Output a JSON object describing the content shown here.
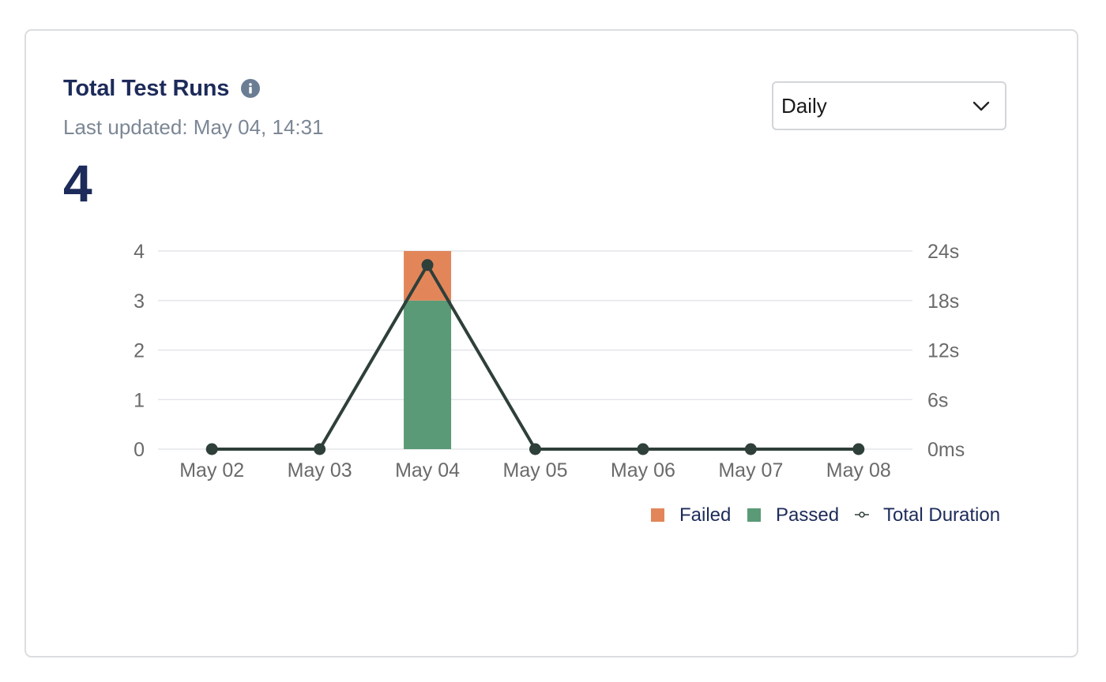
{
  "card": {
    "title": "Total Test Runs",
    "info_icon": "info-icon",
    "last_updated": "Last updated: May 04, 14:31",
    "total": "4"
  },
  "period_select": {
    "selected": "Daily",
    "icon": "chevron-down-icon"
  },
  "colors": {
    "failed": "#e2865a",
    "passed": "#5a9a76",
    "duration_line": "#2f3f3a",
    "grid": "#e4e6e9"
  },
  "chart_data": {
    "type": "bar",
    "categories": [
      "May 02",
      "May 03",
      "May 04",
      "May 05",
      "May 06",
      "May 07",
      "May 08"
    ],
    "stacked": true,
    "series": [
      {
        "name": "Passed",
        "type": "bar",
        "axis": "left",
        "values": [
          0,
          0,
          3,
          0,
          0,
          0,
          0
        ]
      },
      {
        "name": "Failed",
        "type": "bar",
        "axis": "left",
        "values": [
          0,
          0,
          1,
          0,
          0,
          0,
          0
        ]
      },
      {
        "name": "Total Duration",
        "type": "line",
        "axis": "right",
        "unit": "s",
        "values": [
          0,
          0,
          22.3,
          0,
          0,
          0,
          0
        ]
      }
    ],
    "y_left": {
      "min": 0,
      "max": 4,
      "ticks": [
        "0",
        "1",
        "2",
        "3",
        "4"
      ]
    },
    "y_right": {
      "min": 0,
      "max": 24,
      "ticks": [
        "0ms",
        "6s",
        "12s",
        "18s",
        "24s"
      ]
    },
    "legend": {
      "position": "bottom-right",
      "items": [
        "Failed",
        "Passed",
        "Total Duration"
      ]
    },
    "grid": true
  }
}
